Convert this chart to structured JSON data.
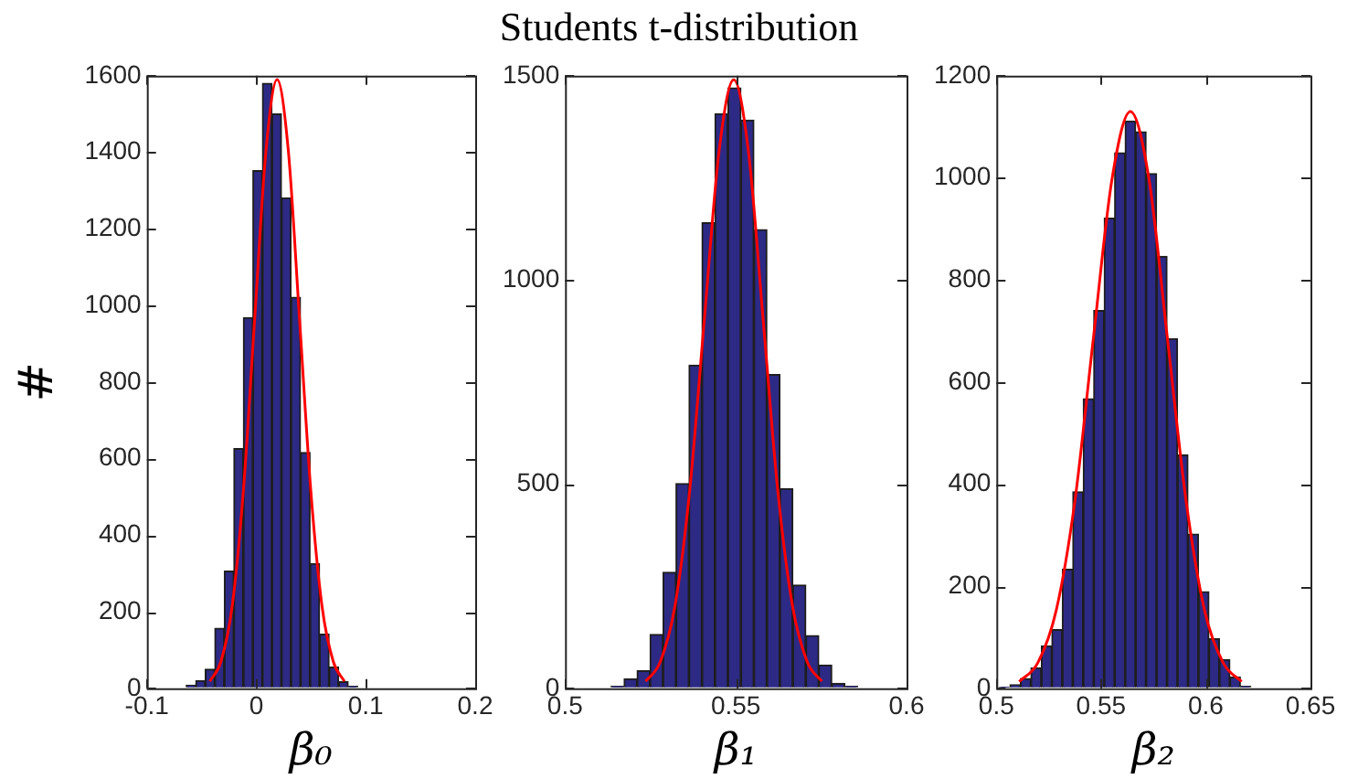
{
  "chart_data": [
    {
      "type": "histogram",
      "ylabel": "#",
      "xlabel": "β₀",
      "xlim": [
        -0.1,
        0.2
      ],
      "xticks": [
        -0.1,
        0,
        0.1,
        0.2
      ],
      "ylim": [
        0,
        1600
      ],
      "yticks": [
        0,
        200,
        400,
        600,
        800,
        1000,
        1200,
        1400,
        1600
      ],
      "grid": false,
      "legend": false,
      "series": [
        {
          "color": "#2d2a85",
          "bins": [
            -0.064,
            -0.0553,
            -0.0466,
            -0.0379,
            -0.0292,
            -0.0205,
            -0.0118,
            -0.0031,
            0.0056,
            0.0143,
            0.023,
            0.0317,
            0.0404,
            0.0491,
            0.0578,
            0.0665,
            0.0752,
            0.0839,
            0.0926
          ],
          "values": [
            8,
            20,
            50,
            157,
            306,
            626,
            968,
            1352,
            1580,
            1500,
            1281,
            1021,
            616,
            326,
            141,
            55,
            17,
            5
          ]
        },
        {
          "type": "line",
          "color": "#ff0000",
          "marker": "none",
          "x": [
            -0.0425,
            -0.0323,
            -0.022,
            -0.0118,
            -0.0015,
            0.0088,
            0.019,
            0.0293,
            0.0395,
            0.0498,
            0.06,
            0.0703,
            0.0805
          ],
          "values": [
            18,
            70,
            215,
            516,
            964,
            1403,
            1590,
            1403,
            964,
            516,
            215,
            70,
            18
          ]
        }
      ]
    },
    {
      "type": "histogram",
      "title": "Students t-distribution",
      "xlabel": "β₁",
      "xlim": [
        0.5,
        0.6
      ],
      "xticks": [
        0.5,
        0.55,
        0.6
      ],
      "ylim": [
        0,
        1500
      ],
      "yticks": [
        0,
        500,
        1000,
        1500
      ],
      "grid": false,
      "legend": false,
      "series": [
        {
          "color": "#2d2a85",
          "bins": [
            0.5135,
            0.5173,
            0.5211,
            0.5249,
            0.5287,
            0.5325,
            0.5363,
            0.5401,
            0.5439,
            0.5477,
            0.5515,
            0.5553,
            0.5591,
            0.5629,
            0.5667,
            0.5705,
            0.5743,
            0.5781,
            0.5819,
            0.5857
          ],
          "values": [
            5,
            23,
            43,
            132,
            284,
            501,
            791,
            1140,
            1407,
            1470,
            1391,
            1123,
            768,
            489,
            253,
            129,
            57,
            12,
            5
          ]
        },
        {
          "type": "line",
          "color": "#ff0000",
          "marker": "none",
          "x": [
            0.5236,
            0.5279,
            0.5322,
            0.5365,
            0.5408,
            0.5451,
            0.5494,
            0.5537,
            0.558,
            0.5623,
            0.5666,
            0.5709,
            0.5752
          ],
          "values": [
            17,
            65,
            202,
            484,
            904,
            1315,
            1490,
            1315,
            904,
            484,
            202,
            65,
            17
          ]
        }
      ]
    },
    {
      "type": "histogram",
      "xlabel": "β₂",
      "xlim": [
        0.5,
        0.65
      ],
      "xticks": [
        0.5,
        0.55,
        0.6,
        0.65
      ],
      "ylim": [
        0,
        1200
      ],
      "yticks": [
        0,
        200,
        400,
        600,
        800,
        1000,
        1200
      ],
      "grid": false,
      "legend": false,
      "series": [
        {
          "color": "#2d2a85",
          "bins": [
            0.5015,
            0.5065,
            0.5115,
            0.5165,
            0.5215,
            0.5265,
            0.5315,
            0.5365,
            0.5415,
            0.5465,
            0.5515,
            0.5565,
            0.5615,
            0.5665,
            0.5715,
            0.5765,
            0.5815,
            0.5865,
            0.5915,
            0.5965,
            0.6015,
            0.6065,
            0.6115,
            0.6165,
            0.6215
          ],
          "values": [
            2,
            7,
            19,
            40,
            83,
            115,
            233,
            385,
            567,
            740,
            921,
            1049,
            1111,
            1090,
            1008,
            846,
            685,
            457,
            302,
            189,
            97,
            56,
            22,
            4
          ]
        },
        {
          "type": "line",
          "color": "#ff0000",
          "marker": "none",
          "x": [
            0.5109,
            0.5198,
            0.5286,
            0.5375,
            0.5463,
            0.5552,
            0.564,
            0.5729,
            0.5817,
            0.5906,
            0.5994,
            0.6083,
            0.6171
          ],
          "values": [
            13,
            50,
            153,
            367,
            685,
            997,
            1130,
            997,
            685,
            367,
            153,
            50,
            13
          ]
        }
      ]
    }
  ]
}
